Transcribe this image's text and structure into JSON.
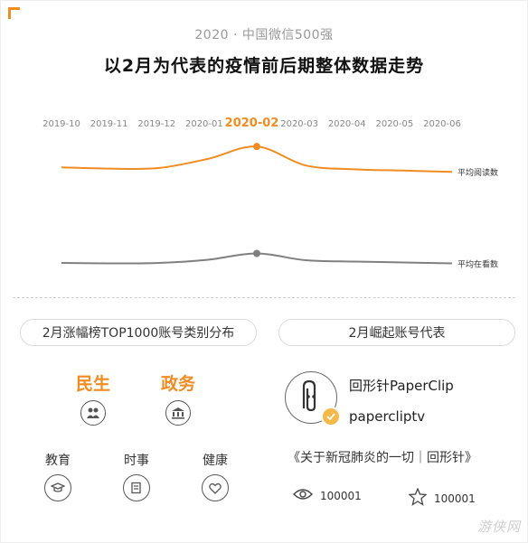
{
  "header": {
    "subtitle": "2020 · 中国微信500强",
    "title": "以2月为代表的疫情前后期整体数据走势"
  },
  "colors": {
    "accent": "#f08c22",
    "series_read": "#f08c22",
    "series_watch": "#808080"
  },
  "chart_data": {
    "type": "line",
    "x": [
      "2019-10",
      "2019-11",
      "2019-12",
      "2020-01",
      "2020-02",
      "2020-03",
      "2020-04",
      "2020-05",
      "2020-06"
    ],
    "highlight_x": "2020-02",
    "y_axis_shown": false,
    "grid": false,
    "legend": "end-labels-right",
    "series": [
      {
        "name": "平均阅读数",
        "values": [
          0.65,
          0.63,
          0.64,
          0.78,
          0.97,
          0.68,
          0.62,
          0.6,
          0.58
        ],
        "marker_at": "2020-02"
      },
      {
        "name": "平均在看数",
        "values": [
          0.22,
          0.21,
          0.22,
          0.29,
          0.43,
          0.28,
          0.25,
          0.23,
          0.21
        ],
        "marker_at": "2020-02"
      }
    ]
  },
  "left_panel": {
    "heading": "2月涨幅榜TOP1000账号类别分布",
    "top_categories": [
      {
        "label": "民生",
        "icon": "people-icon"
      },
      {
        "label": "政务",
        "icon": "government-building-icon"
      }
    ],
    "other_categories": [
      {
        "label": "教育",
        "icon": "graduation-cap-icon"
      },
      {
        "label": "时事",
        "icon": "news-document-icon"
      },
      {
        "label": "健康",
        "icon": "heart-icon"
      }
    ]
  },
  "right_panel": {
    "heading": "2月崛起账号代表",
    "account_name": "回形针PaperClip",
    "account_id": "papercliptv",
    "article_title": "《关于新冠肺炎的一切｜回形针》",
    "stats": {
      "views": "100001",
      "wow": "100001"
    }
  },
  "watermark": "游侠网"
}
